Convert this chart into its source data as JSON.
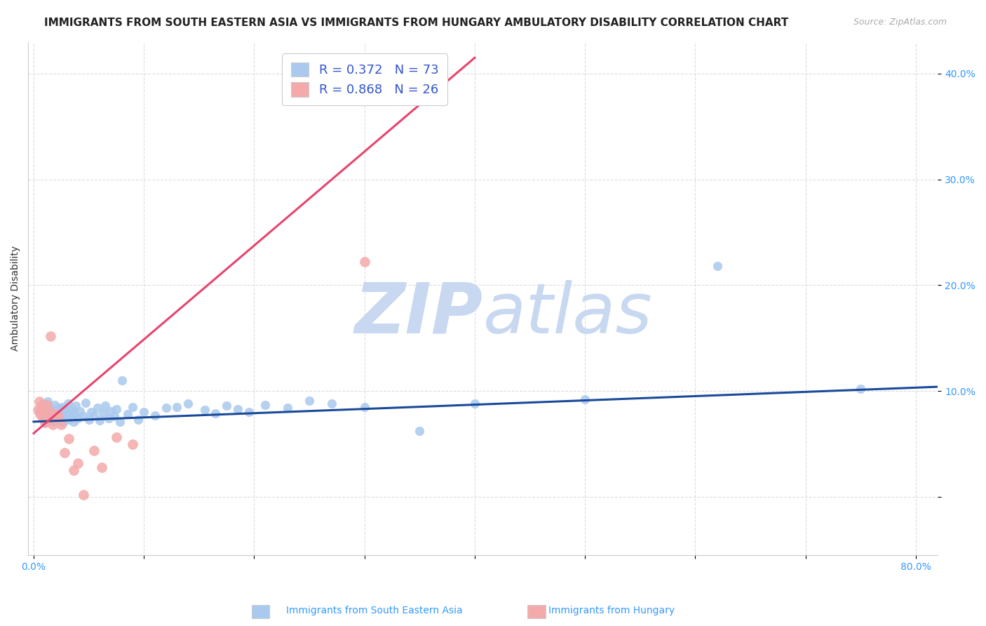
{
  "title": "IMMIGRANTS FROM SOUTH EASTERN ASIA VS IMMIGRANTS FROM HUNGARY AMBULATORY DISABILITY CORRELATION CHART",
  "source": "Source: ZipAtlas.com",
  "ylabel": "Ambulatory Disability",
  "xlim": [
    -0.005,
    0.82
  ],
  "ylim": [
    -0.055,
    0.43
  ],
  "xticks": [
    0.0,
    0.1,
    0.2,
    0.3,
    0.4,
    0.5,
    0.6,
    0.7,
    0.8
  ],
  "xticklabels": [
    "0.0%",
    "",
    "",
    "",
    "",
    "",
    "",
    "",
    "80.0%"
  ],
  "yticks": [
    0.0,
    0.1,
    0.2,
    0.3,
    0.4
  ],
  "yticklabels": [
    "",
    "10.0%",
    "20.0%",
    "30.0%",
    "40.0%"
  ],
  "grid_color": "#dddddd",
  "background_color": "#ffffff",
  "blue_color": "#aac9ee",
  "blue_line_color": "#1a4a99",
  "pink_color": "#f4aaaa",
  "pink_line_color": "#e8446e",
  "R_blue": 0.372,
  "N_blue": 73,
  "R_pink": 0.868,
  "N_pink": 26,
  "legend_text_color": "#3355cc",
  "blue_scatter_x": [
    0.005,
    0.007,
    0.008,
    0.009,
    0.01,
    0.01,
    0.012,
    0.013,
    0.014,
    0.015,
    0.016,
    0.017,
    0.018,
    0.019,
    0.02,
    0.021,
    0.022,
    0.023,
    0.024,
    0.025,
    0.026,
    0.027,
    0.028,
    0.029,
    0.03,
    0.031,
    0.032,
    0.033,
    0.034,
    0.035,
    0.036,
    0.037,
    0.038,
    0.04,
    0.042,
    0.045,
    0.047,
    0.05,
    0.052,
    0.055,
    0.058,
    0.06,
    0.063,
    0.065,
    0.068,
    0.07,
    0.073,
    0.075,
    0.078,
    0.08,
    0.085,
    0.09,
    0.095,
    0.1,
    0.11,
    0.12,
    0.13,
    0.14,
    0.155,
    0.165,
    0.175,
    0.185,
    0.195,
    0.21,
    0.23,
    0.25,
    0.27,
    0.3,
    0.35,
    0.4,
    0.5,
    0.62,
    0.75
  ],
  "blue_scatter_y": [
    0.082,
    0.078,
    0.088,
    0.075,
    0.07,
    0.085,
    0.08,
    0.09,
    0.073,
    0.076,
    0.083,
    0.071,
    0.079,
    0.087,
    0.074,
    0.081,
    0.076,
    0.084,
    0.072,
    0.078,
    0.085,
    0.07,
    0.082,
    0.077,
    0.075,
    0.088,
    0.073,
    0.08,
    0.076,
    0.083,
    0.071,
    0.078,
    0.086,
    0.074,
    0.081,
    0.076,
    0.089,
    0.073,
    0.08,
    0.077,
    0.084,
    0.072,
    0.079,
    0.086,
    0.074,
    0.081,
    0.076,
    0.083,
    0.071,
    0.11,
    0.078,
    0.085,
    0.073,
    0.08,
    0.077,
    0.084,
    0.085,
    0.088,
    0.082,
    0.079,
    0.086,
    0.083,
    0.08,
    0.087,
    0.084,
    0.091,
    0.088,
    0.085,
    0.062,
    0.088,
    0.092,
    0.218,
    0.102
  ],
  "pink_scatter_x": [
    0.004,
    0.005,
    0.006,
    0.007,
    0.008,
    0.009,
    0.01,
    0.011,
    0.012,
    0.013,
    0.014,
    0.015,
    0.017,
    0.019,
    0.022,
    0.025,
    0.028,
    0.032,
    0.036,
    0.04,
    0.045,
    0.055,
    0.062,
    0.075,
    0.09,
    0.3
  ],
  "pink_scatter_y": [
    0.082,
    0.09,
    0.078,
    0.086,
    0.074,
    0.083,
    0.07,
    0.079,
    0.087,
    0.075,
    0.081,
    0.152,
    0.068,
    0.078,
    0.076,
    0.068,
    0.042,
    0.055,
    0.025,
    0.032,
    0.002,
    0.044,
    0.028,
    0.056,
    0.05,
    0.222
  ],
  "blue_trend_x": [
    0.0,
    0.82
  ],
  "blue_trend_y": [
    0.071,
    0.104
  ],
  "pink_trend_x": [
    0.0,
    0.4
  ],
  "pink_trend_y": [
    0.06,
    0.415
  ],
  "watermark_zip": "ZIP",
  "watermark_atlas": "atlas",
  "watermark_color": "#c8d8f0",
  "title_fontsize": 11,
  "axis_label_fontsize": 10,
  "tick_fontsize": 10,
  "legend_fontsize": 13
}
